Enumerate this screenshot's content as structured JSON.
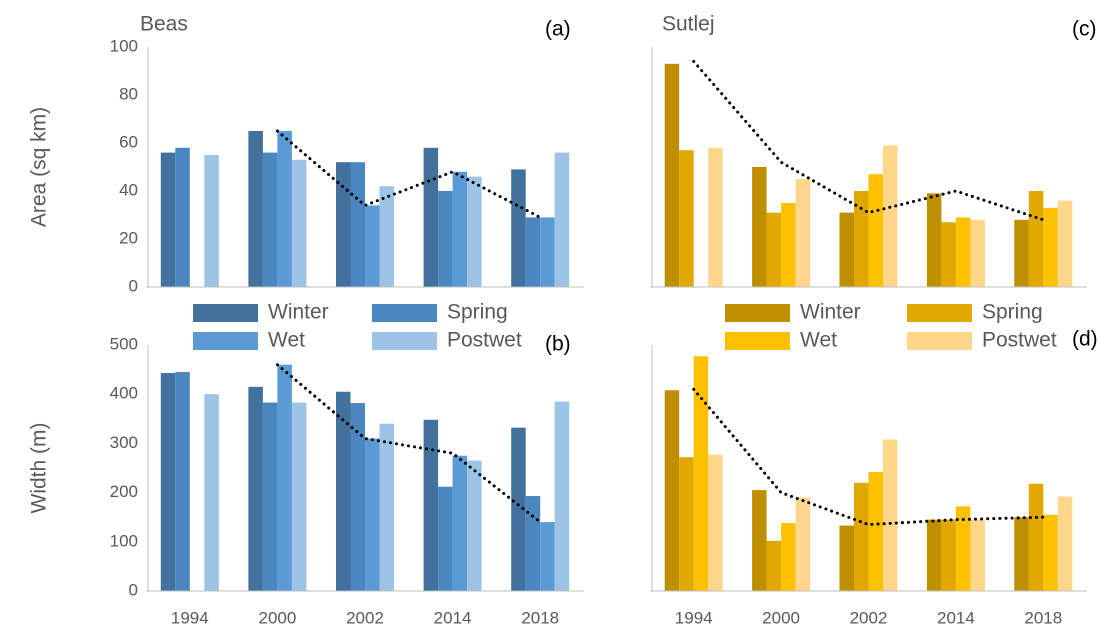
{
  "chart_data": [
    {
      "type": "bar",
      "title": "Beas",
      "panel_label": "(a)",
      "y_label": "Area (sq km)",
      "ylim": [
        0,
        100
      ],
      "yticks": [
        0,
        20,
        40,
        60,
        80,
        100
      ],
      "series": [
        {
          "color": "#41719c",
          "values": [
            56,
            65,
            52,
            58,
            49
          ]
        },
        {
          "color": "#4a86c0",
          "values": [
            58,
            56,
            52,
            40,
            29
          ]
        },
        {
          "color": "#5b9bd5",
          "values": [
            null,
            65,
            34,
            48,
            29
          ]
        },
        {
          "color": "#9dc3e6",
          "values": [
            55,
            53,
            42,
            46,
            56
          ]
        }
      ],
      "trend": [
        null,
        65,
        34,
        48,
        29
      ]
    },
    {
      "type": "bar",
      "panel_label": "(b)",
      "y_label": "Width (m)",
      "categories": [
        "1994",
        "2000",
        "2002",
        "2014",
        "2018"
      ],
      "ylim": [
        0,
        500
      ],
      "yticks": [
        0,
        100,
        200,
        300,
        400,
        500
      ],
      "legend": "top",
      "series": [
        {
          "name": "Winter",
          "color": "#41719c",
          "values": [
            443,
            415,
            405,
            348,
            332
          ]
        },
        {
          "name": "Spring",
          "color": "#4a86c0",
          "values": [
            445,
            383,
            382,
            212,
            193
          ]
        },
        {
          "name": "Wet",
          "color": "#5b9bd5",
          "values": [
            null,
            460,
            310,
            275,
            140
          ]
        },
        {
          "name": "Postwet",
          "color": "#9dc3e6",
          "values": [
            400,
            383,
            340,
            265,
            385
          ]
        }
      ],
      "trend": [
        null,
        460,
        310,
        280,
        140
      ]
    },
    {
      "type": "bar",
      "title": "Sutlej",
      "panel_label": "(c)",
      "ylim": [
        0,
        100
      ],
      "series": [
        {
          "color": "#bf8f00",
          "values": [
            93,
            50,
            31,
            39,
            28
          ]
        },
        {
          "color": "#e0a800",
          "values": [
            57,
            31,
            40,
            27,
            40
          ]
        },
        {
          "color": "#ffc000",
          "values": [
            null,
            35,
            47,
            29,
            33
          ]
        },
        {
          "color": "#ffd68a",
          "values": [
            58,
            45,
            59,
            28,
            36
          ]
        }
      ],
      "trend": [
        94,
        52,
        31,
        40,
        28
      ]
    },
    {
      "type": "bar",
      "panel_label": "(d)",
      "categories": [
        "1994",
        "2000",
        "2002",
        "2014",
        "2018"
      ],
      "ylim": [
        0,
        500
      ],
      "legend": "top",
      "series": [
        {
          "name": "Winter",
          "color": "#bf8f00",
          "values": [
            408,
            205,
            133,
            145,
            150
          ]
        },
        {
          "name": "Spring",
          "color": "#e0a800",
          "values": [
            272,
            102,
            220,
            145,
            218
          ]
        },
        {
          "name": "Wet",
          "color": "#ffc000",
          "values": [
            477,
            138,
            242,
            172,
            155
          ]
        },
        {
          "name": "Postwet",
          "color": "#ffd68a",
          "values": [
            277,
            190,
            308,
            145,
            192
          ]
        }
      ],
      "trend": [
        410,
        200,
        135,
        145,
        150
      ]
    }
  ]
}
